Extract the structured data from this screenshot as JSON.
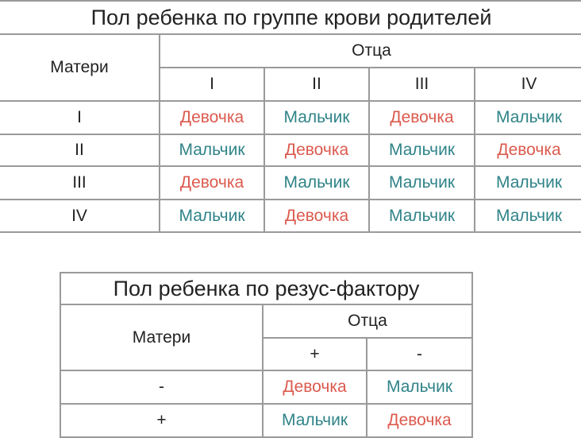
{
  "blood_table": {
    "title": "Пол ребенка по группе крови родителей",
    "mother_label": "Матери",
    "father_label": "Отца",
    "father_groups": [
      "I",
      "II",
      "III",
      "IV"
    ],
    "rows": [
      {
        "mother": "I",
        "cells": [
          "Девочка",
          "Мальчик",
          "Девочка",
          "Мальчик"
        ]
      },
      {
        "mother": "II",
        "cells": [
          "Мальчик",
          "Девочка",
          "Мальчик",
          "Девочка"
        ]
      },
      {
        "mother": "III",
        "cells": [
          "Девочка",
          "Мальчик",
          "Мальчик",
          "Мальчик"
        ]
      },
      {
        "mother": "IV",
        "cells": [
          "Мальчик",
          "Девочка",
          "Мальчик",
          "Мальчик"
        ]
      }
    ]
  },
  "rh_table": {
    "title": "Пол ребенка по резус-фактору",
    "mother_label": "Матери",
    "father_label": "Отца",
    "father_groups": [
      "+",
      "-"
    ],
    "rows": [
      {
        "mother": "-",
        "cells": [
          "Девочка",
          "Мальчик"
        ]
      },
      {
        "mother": "+",
        "cells": [
          "Мальчик",
          "Девочка"
        ]
      }
    ]
  },
  "colors": {
    "girl": "#dc5a4e",
    "boy": "#2f8388",
    "border": "#9a9a9a"
  }
}
